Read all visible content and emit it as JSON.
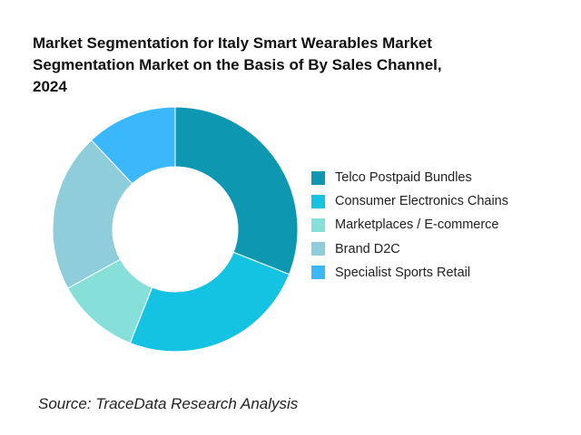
{
  "title_lines": [
    "Market Segmentation for Italy Smart Wearables Market",
    "Segmentation Market on the Basis of By Sales Channel,",
    "2024"
  ],
  "source": "Source: TraceData Research Analysis",
  "chart_data": {
    "type": "pie",
    "donut": true,
    "title": "Market Segmentation for Italy Smart Wearables Market Segmentation Market on the Basis of By Sales Channel, 2024",
    "legend_position": "right",
    "series": [
      {
        "name": "Telco Postpaid Bundles",
        "value": 31,
        "color": "#0e97b1"
      },
      {
        "name": "Consumer Electronics Chains",
        "value": 25,
        "color": "#13c3e1"
      },
      {
        "name": "Marketplaces / E-commerce",
        "value": 11,
        "color": "#87dfda"
      },
      {
        "name": "Brand D2C",
        "value": 21,
        "color": "#8fcdda"
      },
      {
        "name": "Specialist Sports Retail",
        "value": 12,
        "color": "#3ab8fb"
      }
    ]
  }
}
